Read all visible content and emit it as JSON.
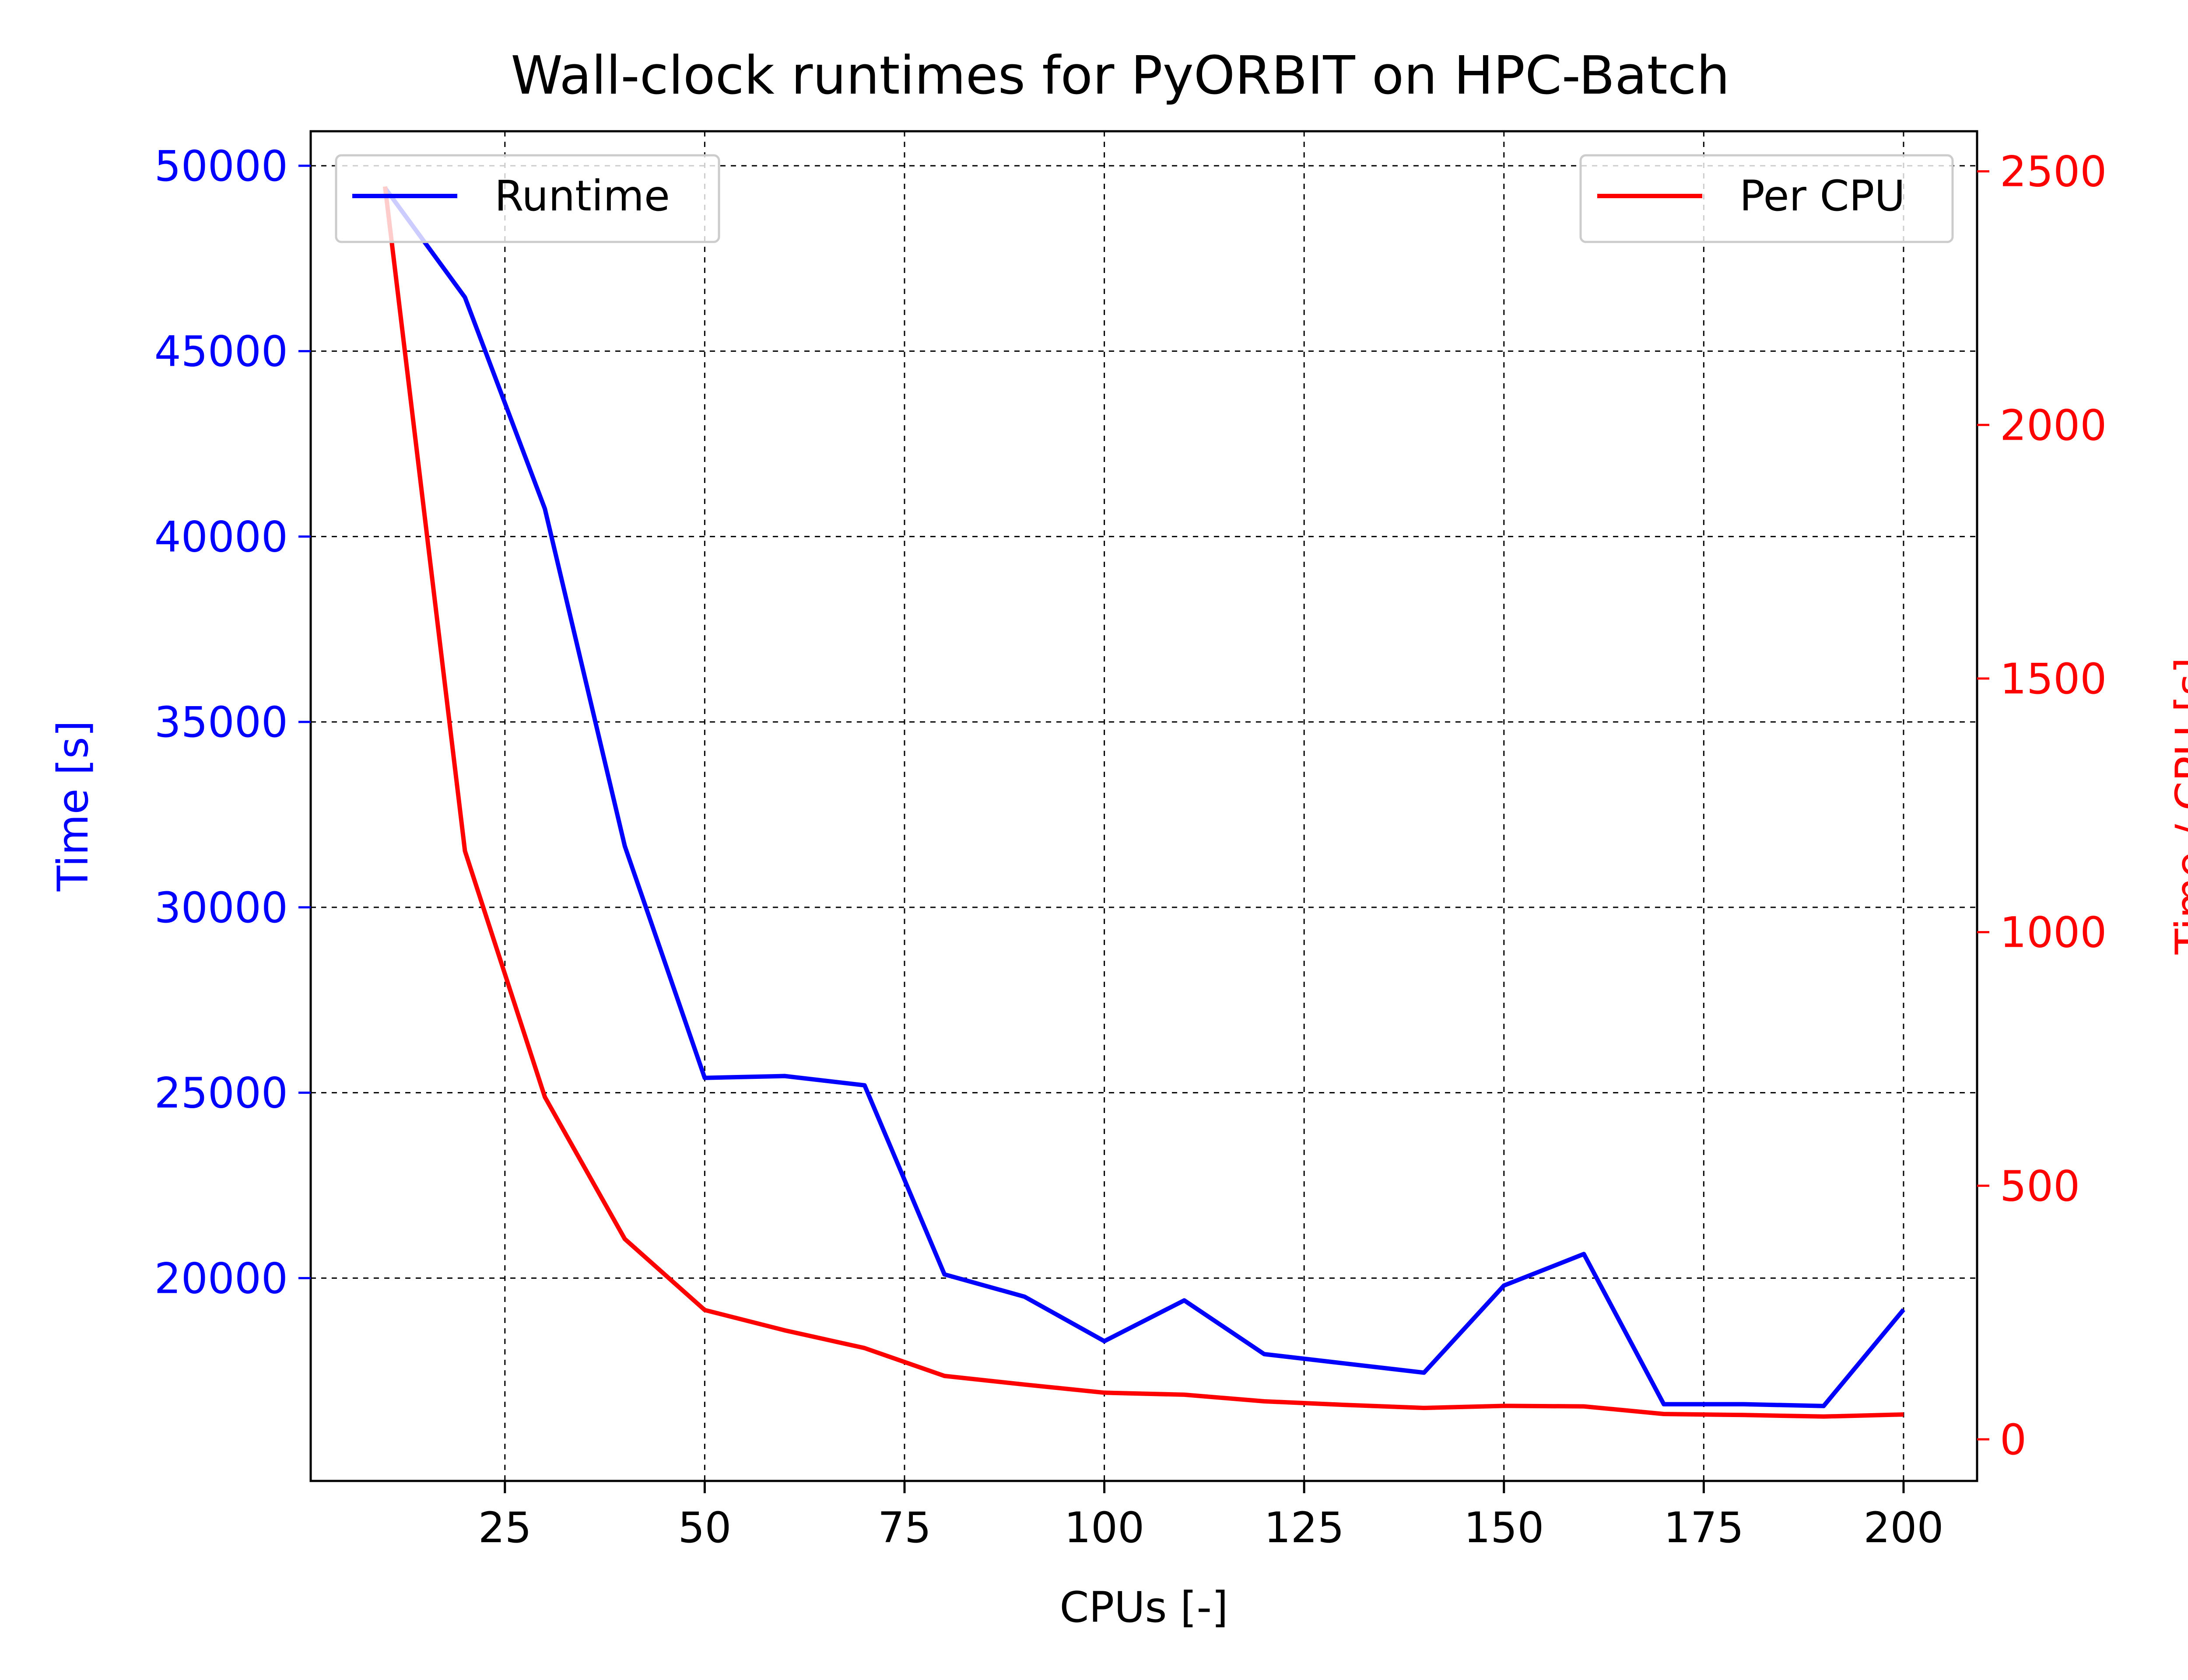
{
  "chart_data": {
    "type": "line",
    "title": "Wall-clock runtimes for PyORBIT on HPC-Batch",
    "xlabel": "CPUs [-]",
    "ylabel_left": "Time [s]",
    "ylabel_right": "Time / CPU [s]",
    "xlim": [
      0.7,
      209.2
    ],
    "ylim_left": [
      14530,
      50930
    ],
    "ylim_right": [
      -82,
      2579
    ],
    "x_ticks": [
      25,
      50,
      75,
      100,
      125,
      150,
      175,
      200
    ],
    "y_ticks_left": [
      20000,
      25000,
      30000,
      35000,
      40000,
      45000,
      50000
    ],
    "y_ticks_right": [
      0,
      500,
      1000,
      1500,
      2000,
      2500
    ],
    "grid": true,
    "x": [
      10,
      20,
      30,
      40,
      50,
      60,
      70,
      80,
      90,
      100,
      110,
      120,
      130,
      140,
      150,
      160,
      170,
      180,
      190,
      200
    ],
    "series": [
      {
        "name": "Runtime",
        "axis": "left",
        "color": "#0000ff",
        "legend_loc": "upper left",
        "values": [
          49400,
          46450,
          40750,
          31650,
          25400,
          25450,
          25200,
          20100,
          19500,
          18300,
          19400,
          17950,
          17700,
          17450,
          19800,
          20650,
          16600,
          16600,
          16550,
          19150
        ]
      },
      {
        "name": "Per CPU",
        "axis": "right",
        "color": "#ff0000",
        "legend_loc": "upper right",
        "values": [
          2470,
          1160,
          675,
          395,
          255,
          215,
          180,
          125,
          108,
          92,
          88,
          75,
          68,
          62,
          66,
          65,
          50,
          48,
          45,
          49
        ]
      }
    ]
  }
}
